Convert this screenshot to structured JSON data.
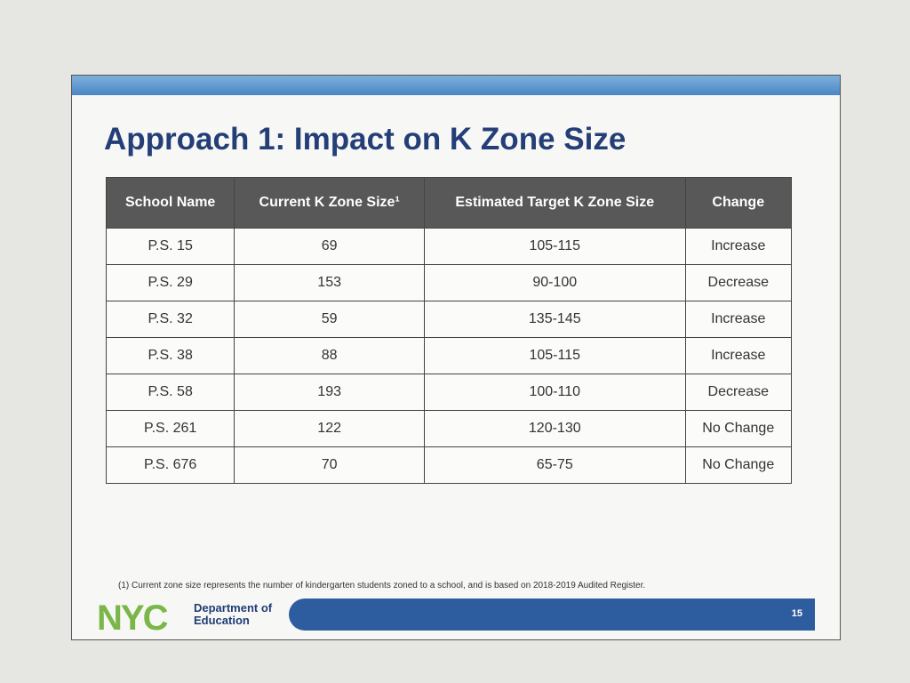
{
  "header": {
    "title": "Approach 1: Impact on K Zone Size"
  },
  "table": {
    "columns": [
      "School Name",
      "Current K Zone Size¹",
      "Estimated Target K Zone Size",
      "Change"
    ],
    "rows": [
      [
        "P.S. 15",
        69,
        "105-115",
        "Increase"
      ],
      [
        "P.S. 29",
        153,
        "90-100",
        "Decrease"
      ],
      [
        "P.S. 32",
        59,
        "135-145",
        "Increase"
      ],
      [
        "P.S. 38",
        88,
        "105-115",
        "Increase"
      ],
      [
        "P.S. 58",
        193,
        "100-110",
        "Decrease"
      ],
      [
        "P.S. 261",
        122,
        "120-130",
        "No Change"
      ],
      [
        "P.S. 676",
        70,
        "65-75",
        "No Change"
      ]
    ]
  },
  "footnote": "(1)  Current zone size represents the number of kindergarten students zoned to a school, and is based on 2018-2019 Audited Register.",
  "footer": {
    "logo": "NYC",
    "department_line1": "Department of",
    "department_line2": "Education",
    "page_number": "15"
  }
}
